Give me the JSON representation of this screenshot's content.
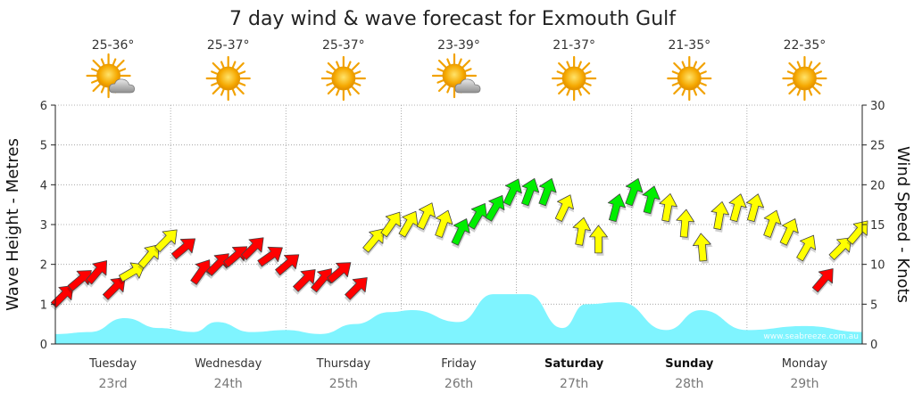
{
  "colors": {
    "wave_fill": "#7ff4ff",
    "light_wind": "#ff0000",
    "moderate_wind": "#ffff00",
    "strong_wind": "#00ee00",
    "grid": "#999999"
  },
  "chart_data": {
    "type": "area",
    "title": "7 day wind & wave forecast for Exmouth Gulf",
    "y_left_label": "Wave Height - Metres",
    "y_right_label": "Wind Speed - Knots",
    "y_left_range": [
      0,
      6
    ],
    "y_right_range": [
      0,
      30
    ],
    "y_left_ticks": [
      "0",
      "1",
      "2",
      "3",
      "4",
      "5",
      "6"
    ],
    "y_right_ticks": [
      "0",
      "5",
      "10",
      "15",
      "20",
      "25",
      "30"
    ],
    "grid": true,
    "watermark": "www.seabreeze.com.au",
    "days": [
      {
        "day": "Tuesday",
        "date": "23rd",
        "temp": "25-36°",
        "weather": "sun-cloud-icon",
        "bold": false
      },
      {
        "day": "Wednesday",
        "date": "24th",
        "temp": "25-37°",
        "weather": "sun-icon",
        "bold": false
      },
      {
        "day": "Thursday",
        "date": "25th",
        "temp": "25-37°",
        "weather": "sun-icon",
        "bold": false
      },
      {
        "day": "Friday",
        "date": "26th",
        "temp": "23-39°",
        "weather": "sun-cloud-icon",
        "bold": false
      },
      {
        "day": "Saturday",
        "date": "27th",
        "temp": "21-37°",
        "weather": "sun-icon",
        "bold": true
      },
      {
        "day": "Sunday",
        "date": "28th",
        "temp": "21-35°",
        "weather": "sun-icon",
        "bold": true
      },
      {
        "day": "Monday",
        "date": "29th",
        "temp": "22-35°",
        "weather": "sun-icon",
        "bold": false
      }
    ],
    "wave_series": {
      "name": "Wave Height",
      "t": [
        0,
        0.3,
        0.6,
        0.9,
        1.2,
        1.4,
        1.7,
        2.0,
        2.3,
        2.6,
        2.9,
        3.1,
        3.5,
        3.8,
        4.1,
        4.4,
        4.6,
        4.9,
        5.3,
        5.6,
        6.0,
        6.5,
        7.0
      ],
      "values": [
        0.25,
        0.3,
        0.65,
        0.4,
        0.3,
        0.55,
        0.3,
        0.35,
        0.25,
        0.5,
        0.8,
        0.85,
        0.55,
        1.25,
        1.25,
        0.4,
        1.0,
        1.05,
        0.35,
        0.85,
        0.35,
        0.45,
        0.3
      ]
    },
    "wind_series": {
      "name": "Wind Speed",
      "t": [
        0,
        0.15,
        0.3,
        0.45,
        0.6,
        0.75,
        0.9,
        1.05,
        1.2,
        1.35,
        1.5,
        1.65,
        1.8,
        1.95,
        2.1,
        2.25,
        2.4,
        2.55,
        2.7,
        2.85,
        3.0,
        3.15,
        3.3,
        3.45,
        3.6,
        3.75,
        3.9,
        4.05,
        4.2,
        4.35,
        4.5,
        4.65,
        4.8,
        4.95,
        5.1,
        5.25,
        5.4,
        5.55,
        5.7,
        5.85,
        6.0,
        6.15,
        6.3,
        6.45,
        6.6,
        6.75,
        6.9
      ],
      "values": [
        6,
        8,
        9,
        7,
        9,
        11,
        13,
        12,
        9,
        10,
        11,
        12,
        11,
        10,
        8,
        8,
        9,
        7,
        13,
        15,
        15,
        16,
        15,
        14,
        16,
        17,
        19,
        19,
        19,
        17,
        14,
        13,
        17,
        19,
        18,
        17,
        15,
        12,
        16,
        17,
        17,
        15,
        14,
        12,
        8,
        12,
        14
      ],
      "direction_deg": [
        45,
        50,
        40,
        45,
        60,
        40,
        45,
        50,
        35,
        45,
        50,
        45,
        55,
        50,
        45,
        40,
        50,
        45,
        40,
        35,
        30,
        25,
        20,
        25,
        30,
        30,
        25,
        20,
        20,
        25,
        10,
        0,
        15,
        20,
        15,
        10,
        5,
        355,
        10,
        15,
        15,
        20,
        25,
        30,
        40,
        45,
        40
      ],
      "band": [
        "light",
        "light",
        "light",
        "light",
        "moderate",
        "moderate",
        "moderate",
        "light",
        "light",
        "light",
        "light",
        "light",
        "light",
        "light",
        "light",
        "light",
        "light",
        "light",
        "moderate",
        "moderate",
        "moderate",
        "moderate",
        "moderate",
        "strong",
        "strong",
        "strong",
        "strong",
        "strong",
        "strong",
        "moderate",
        "moderate",
        "moderate",
        "strong",
        "strong",
        "strong",
        "moderate",
        "moderate",
        "moderate",
        "moderate",
        "moderate",
        "moderate",
        "moderate",
        "moderate",
        "moderate",
        "light",
        "moderate",
        "moderate"
      ]
    }
  }
}
